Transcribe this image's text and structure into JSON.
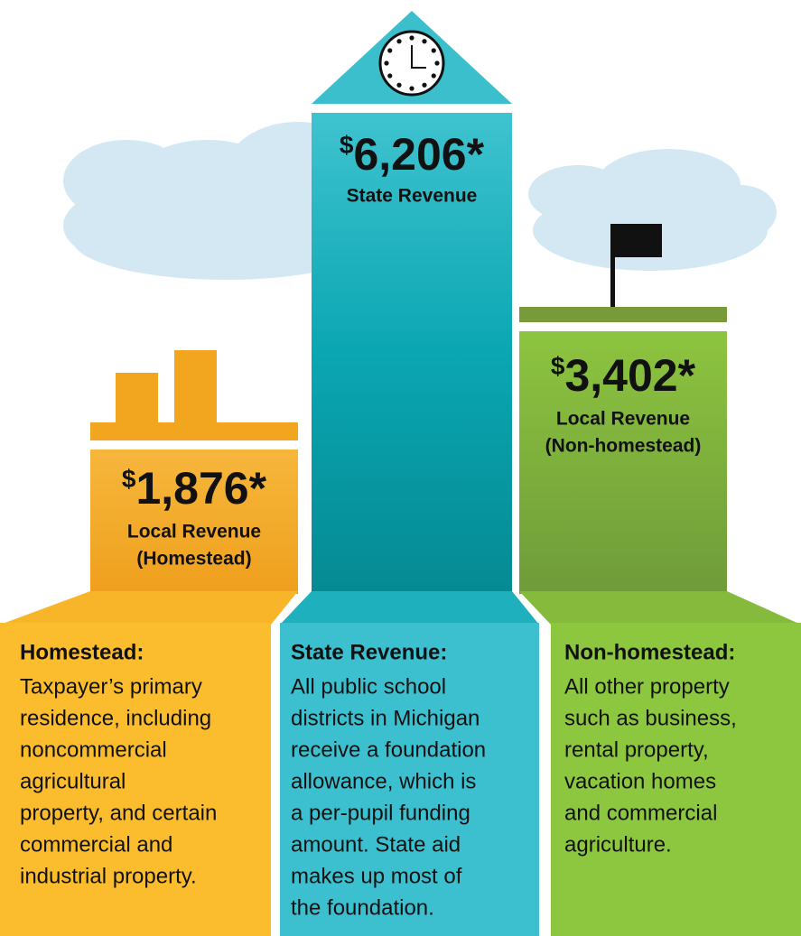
{
  "columns": [
    {
      "amount_prefix": "$",
      "amount": "1,876*",
      "label": "Local Revenue",
      "sublabel": "(Homestead)",
      "description": {
        "title": "Homestead:",
        "lines": [
          "Taxpayer’s primary",
          "residence, including",
          "noncommercial",
          "agricultural",
          "property, and certain",
          "commercial and",
          "industrial property."
        ]
      }
    },
    {
      "amount_prefix": "$",
      "amount": "6,206*",
      "label": "State Revenue",
      "description": {
        "title": "State Revenue:",
        "lines": [
          "All public school",
          "districts in Michigan",
          "receive a foundation",
          "allowance, which is",
          "a per-pupil funding",
          "amount. State aid",
          "makes up most of",
          "the foundation."
        ]
      }
    },
    {
      "amount_prefix": "$",
      "amount": "3,402*",
      "label": "Local Revenue",
      "sublabel": "(Non-homestead)",
      "description": {
        "title": "Non-homestead:",
        "lines": [
          "All other property",
          "such as business,",
          "rental property,",
          "vacation homes",
          "and commercial",
          "agriculture."
        ]
      }
    }
  ]
}
